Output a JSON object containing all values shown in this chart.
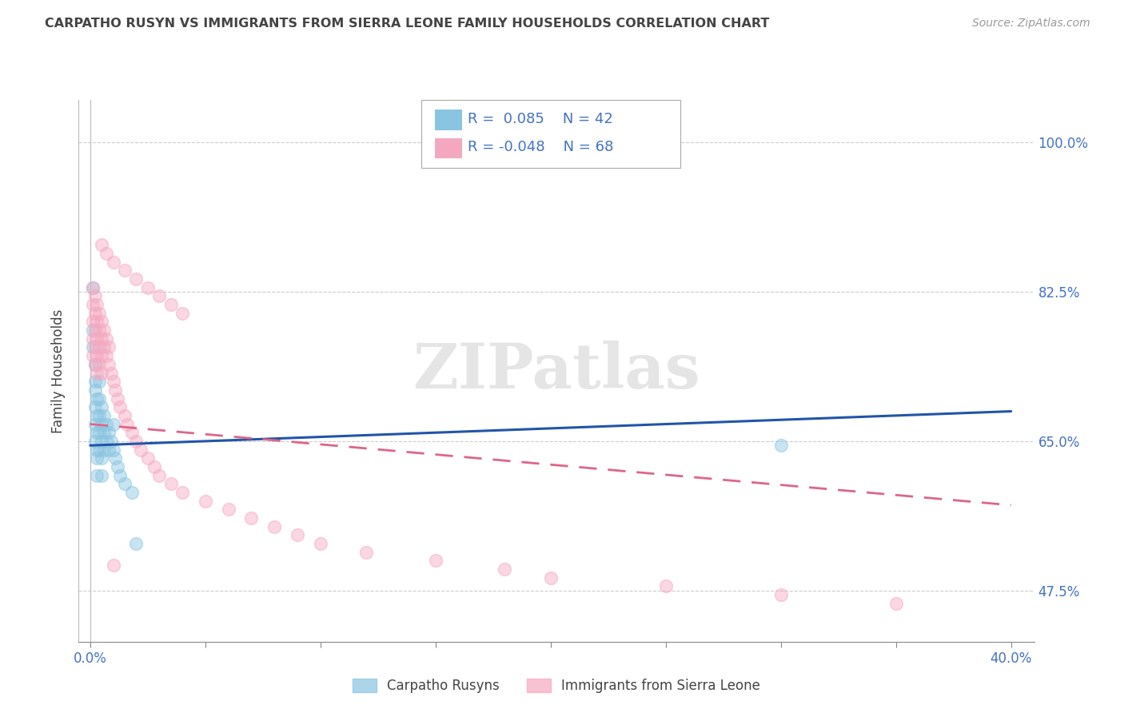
{
  "title": "CARPATHO RUSYN VS IMMIGRANTS FROM SIERRA LEONE FAMILY HOUSEHOLDS CORRELATION CHART",
  "source": "Source: ZipAtlas.com",
  "ylabel": "Family Households",
  "xlim": [
    -0.005,
    0.41
  ],
  "ylim": [
    0.415,
    1.05
  ],
  "ytick_positions": [
    0.475,
    0.65,
    0.825,
    1.0
  ],
  "ytick_labels": [
    "47.5%",
    "65.0%",
    "82.5%",
    "100.0%"
  ],
  "xtick_positions": [
    0.0,
    0.05,
    0.1,
    0.15,
    0.2,
    0.25,
    0.3,
    0.35,
    0.4
  ],
  "watermark": "ZIPatlas",
  "series1_color": "#89c4e1",
  "series2_color": "#f4a8c0",
  "line1_color": "#2255aa",
  "line2_color": "#dd6688",
  "background_color": "#ffffff",
  "grid_color": "#cccccc",
  "title_color": "#444444",
  "axis_label_color": "#444444",
  "tick_color": "#4472c4",
  "series1_name": "Carpatho Rusyns",
  "series2_name": "Immigrants from Sierra Leone",
  "series1_x": [
    0.001,
    0.001,
    0.001,
    0.002,
    0.002,
    0.002,
    0.002,
    0.002,
    0.002,
    0.003,
    0.003,
    0.003,
    0.003,
    0.003,
    0.003,
    0.004,
    0.004,
    0.004,
    0.004,
    0.004,
    0.005,
    0.005,
    0.005,
    0.005,
    0.005,
    0.006,
    0.006,
    0.006,
    0.007,
    0.007,
    0.008,
    0.008,
    0.009,
    0.01,
    0.01,
    0.011,
    0.012,
    0.013,
    0.015,
    0.018,
    0.3,
    0.02
  ],
  "series1_y": [
    0.83,
    0.78,
    0.76,
    0.74,
    0.72,
    0.71,
    0.69,
    0.67,
    0.65,
    0.7,
    0.68,
    0.66,
    0.64,
    0.63,
    0.61,
    0.72,
    0.7,
    0.68,
    0.66,
    0.64,
    0.69,
    0.67,
    0.65,
    0.63,
    0.61,
    0.68,
    0.66,
    0.64,
    0.67,
    0.65,
    0.66,
    0.64,
    0.65,
    0.67,
    0.64,
    0.63,
    0.62,
    0.61,
    0.6,
    0.59,
    0.645,
    0.53
  ],
  "series2_x": [
    0.001,
    0.001,
    0.001,
    0.001,
    0.001,
    0.002,
    0.002,
    0.002,
    0.002,
    0.002,
    0.003,
    0.003,
    0.003,
    0.003,
    0.003,
    0.004,
    0.004,
    0.004,
    0.004,
    0.005,
    0.005,
    0.005,
    0.005,
    0.006,
    0.006,
    0.007,
    0.007,
    0.008,
    0.008,
    0.009,
    0.01,
    0.011,
    0.012,
    0.013,
    0.015,
    0.016,
    0.018,
    0.02,
    0.022,
    0.025,
    0.028,
    0.03,
    0.035,
    0.04,
    0.05,
    0.06,
    0.07,
    0.08,
    0.09,
    0.1,
    0.12,
    0.15,
    0.18,
    0.2,
    0.25,
    0.3,
    0.35,
    0.005,
    0.007,
    0.01,
    0.015,
    0.02,
    0.025,
    0.03,
    0.035,
    0.04,
    0.01
  ],
  "series2_y": [
    0.83,
    0.81,
    0.79,
    0.77,
    0.75,
    0.82,
    0.8,
    0.78,
    0.76,
    0.74,
    0.81,
    0.79,
    0.77,
    0.75,
    0.73,
    0.8,
    0.78,
    0.76,
    0.74,
    0.79,
    0.77,
    0.75,
    0.73,
    0.78,
    0.76,
    0.77,
    0.75,
    0.76,
    0.74,
    0.73,
    0.72,
    0.71,
    0.7,
    0.69,
    0.68,
    0.67,
    0.66,
    0.65,
    0.64,
    0.63,
    0.62,
    0.61,
    0.6,
    0.59,
    0.58,
    0.57,
    0.56,
    0.55,
    0.54,
    0.53,
    0.52,
    0.51,
    0.5,
    0.49,
    0.48,
    0.47,
    0.46,
    0.88,
    0.87,
    0.86,
    0.85,
    0.84,
    0.83,
    0.82,
    0.81,
    0.8,
    0.505
  ],
  "reg_line1_x": [
    0.0,
    0.4
  ],
  "reg_line1_y": [
    0.645,
    0.685
  ],
  "reg_line2_x": [
    0.0,
    0.4
  ],
  "reg_line2_y": [
    0.67,
    0.575
  ]
}
